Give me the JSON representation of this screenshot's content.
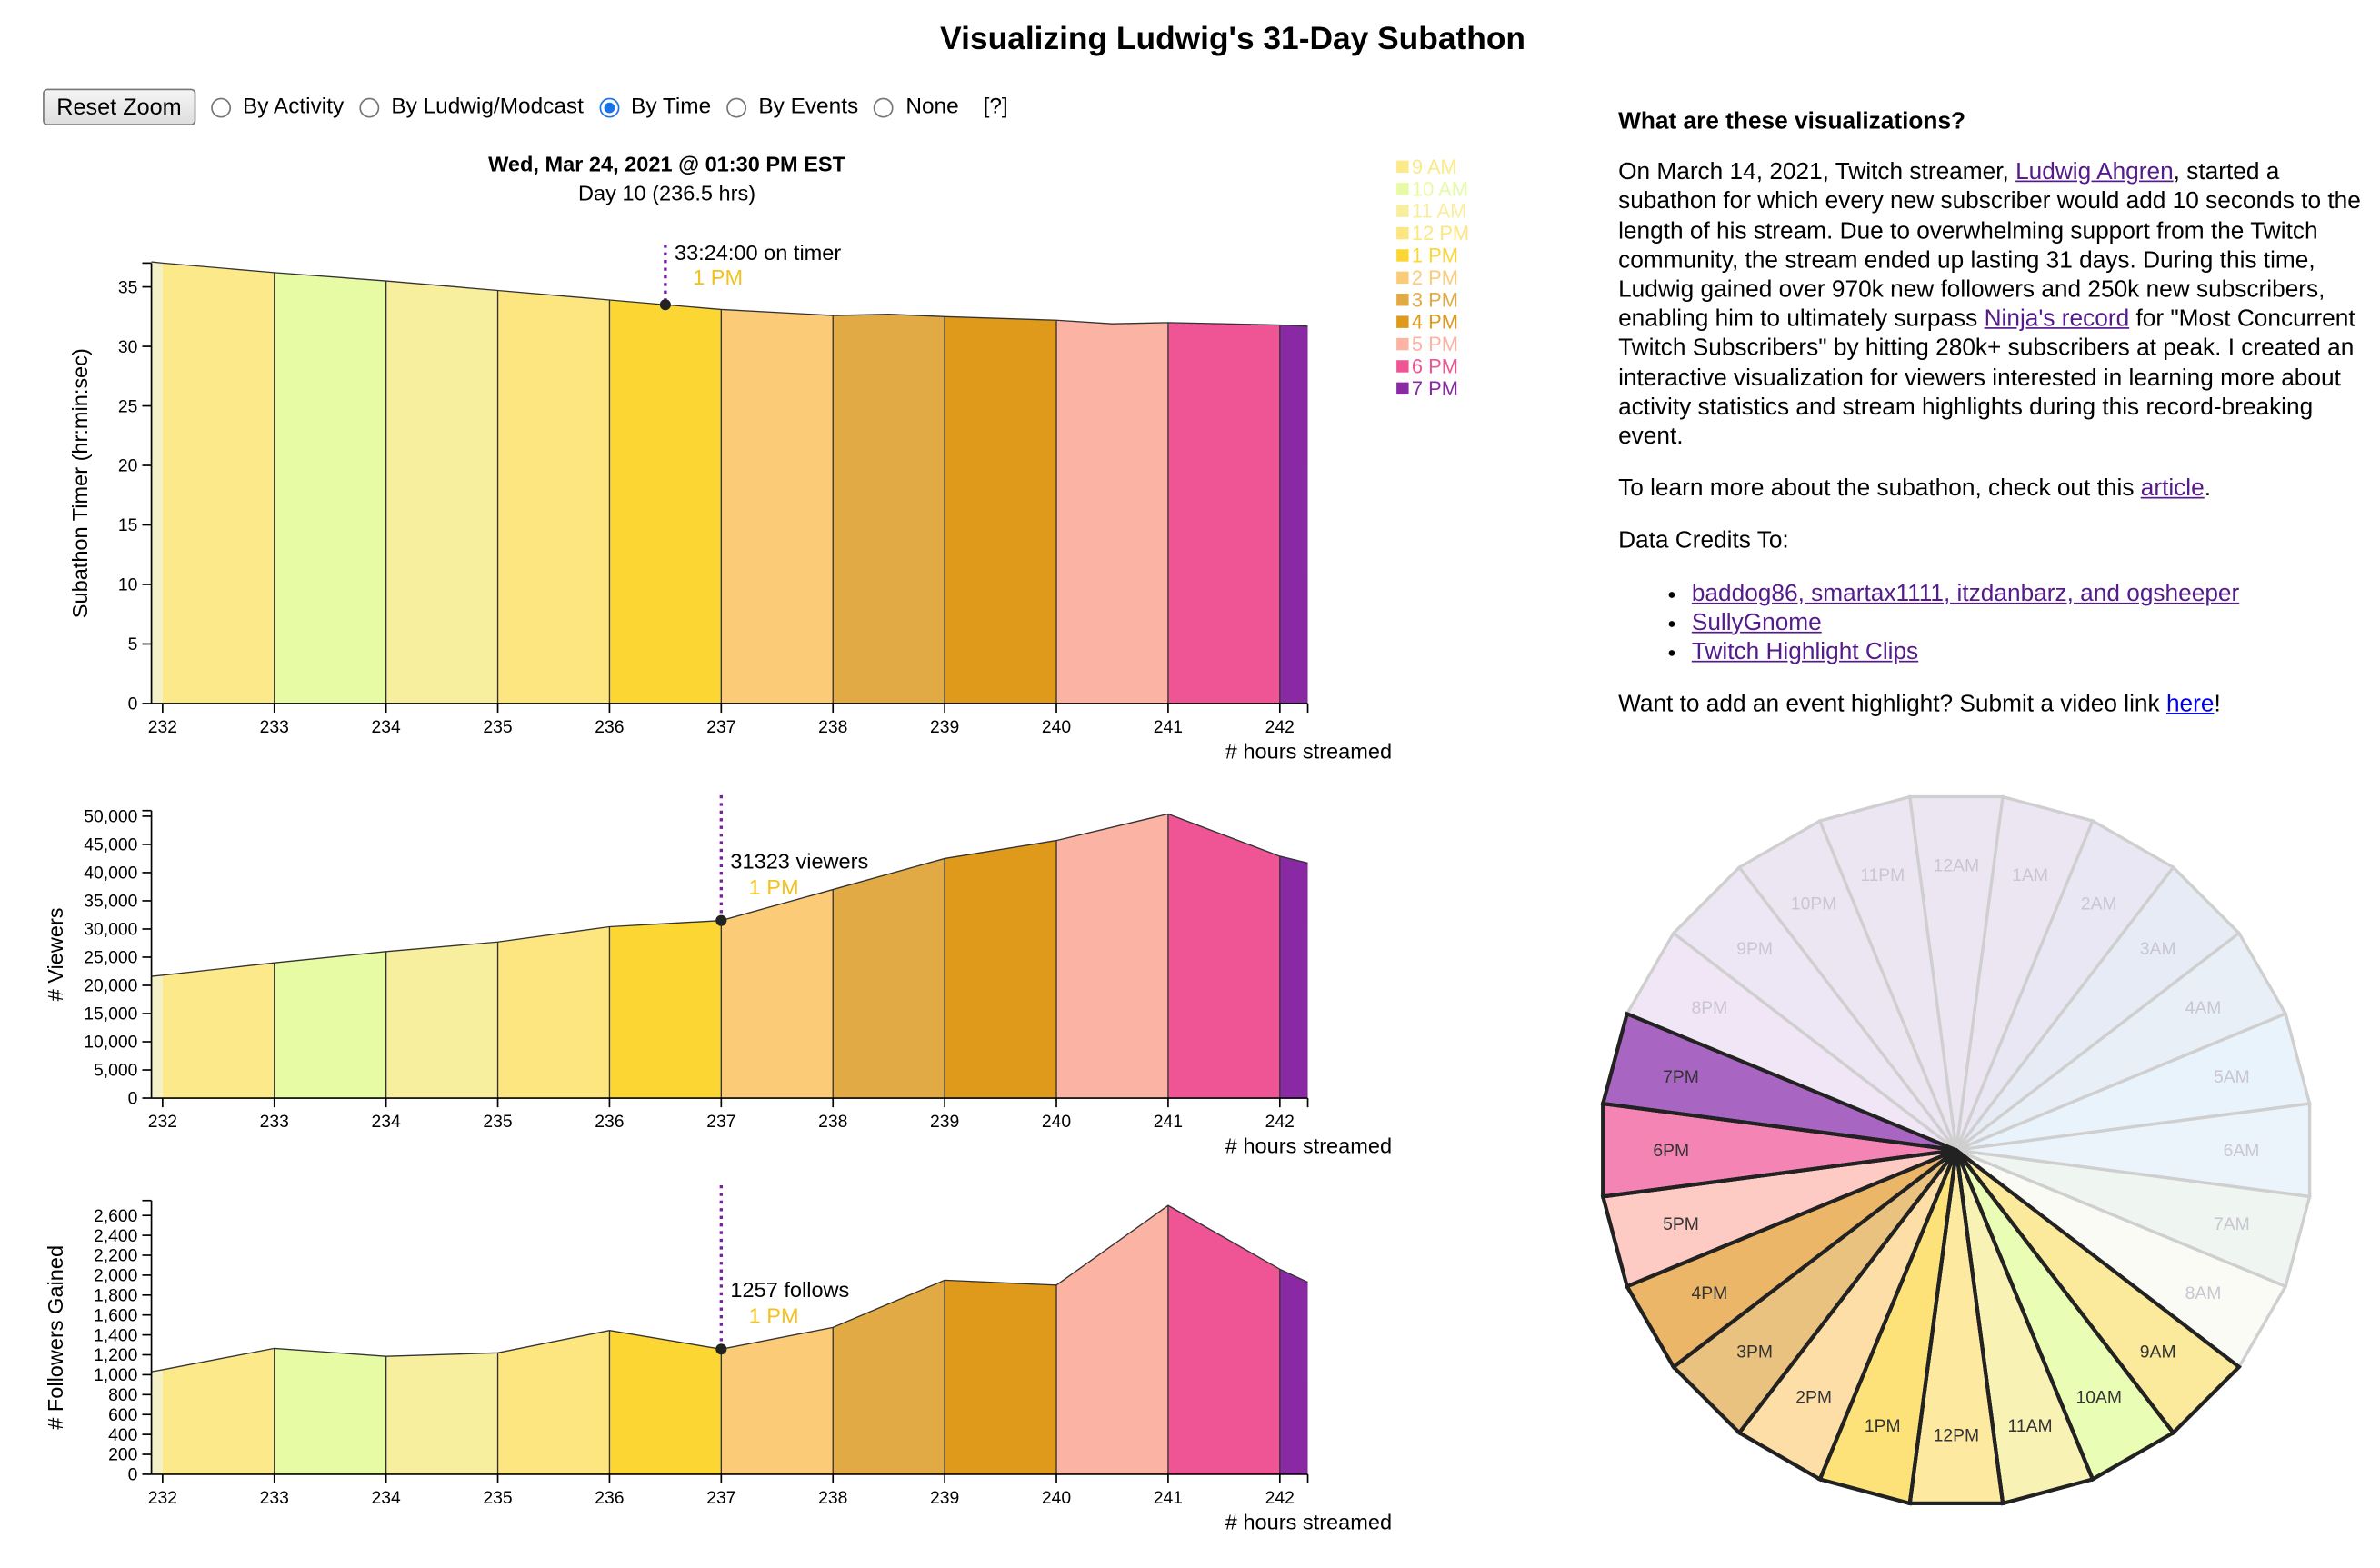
{
  "page_title": "Visualizing Ludwig's 31-Day Subathon",
  "controls": {
    "reset_label": "Reset Zoom",
    "options": [
      "By Activity",
      "By Ludwig/Modcast",
      "By Time",
      "By Events",
      "None"
    ],
    "selected": "By Time",
    "help_label": "[?]"
  },
  "header": {
    "date": "Wed, Mar 24, 2021 @ 01:30 PM EST",
    "day": "Day 10 (236.5 hrs)"
  },
  "legend": [
    {
      "label": "9 AM",
      "color": "#fbe98a"
    },
    {
      "label": "10 AM",
      "color": "#e6fba4"
    },
    {
      "label": "11 AM",
      "color": "#f7ef9d"
    },
    {
      "label": "12 PM",
      "color": "#fde57f"
    },
    {
      "label": "1 PM",
      "color": "#fcd734"
    },
    {
      "label": "2 PM",
      "color": "#fbcb78"
    },
    {
      "label": "3 PM",
      "color": "#e2aa44"
    },
    {
      "label": "4 PM",
      "color": "#df9a1c"
    },
    {
      "label": "5 PM",
      "color": "#fbb3a4"
    },
    {
      "label": "6 PM",
      "color": "#ef5595"
    },
    {
      "label": "7 PM",
      "color": "#8929a4"
    }
  ],
  "info": {
    "heading": "What are these visualizations?",
    "p1": [
      {
        "t": "On March 14, 2021, Twitch streamer, "
      },
      {
        "t": "Ludwig Ahgren",
        "link": true
      },
      {
        "t": ", started a subathon for which every new subscriber would add 10 seconds to the length of his stream. Due to overwhelming support from the Twitch community, the stream ended up lasting 31 days. During this time, Ludwig gained over 970k new followers and 250k new subscribers, enabling him to ultimately surpass "
      },
      {
        "t": "Ninja's record",
        "link": true
      },
      {
        "t": " for \"Most Concurrent Twitch Subscribers\" by hitting 280k+ subscribers at peak. I created an interactive visualization for viewers interested in learning more about activity statistics and stream highlights during this record-breaking event."
      }
    ],
    "p2": [
      {
        "t": "To learn more about the subathon, check out this "
      },
      {
        "t": "article",
        "link": true
      },
      {
        "t": "."
      }
    ],
    "credits_label": "Data Credits To:",
    "credits": [
      "baddog86, smartax1111, itzdanbarz, and ogsheeper",
      "SullyGnome",
      "Twitch Highlight Clips"
    ],
    "p3": [
      {
        "t": "Want to add an event highlight? Submit a video link "
      },
      {
        "t": "here",
        "link": true,
        "blue": true
      },
      {
        "t": "!"
      }
    ]
  },
  "chart_data": [
    {
      "type": "area",
      "ylabel": "Subathon Timer (hr:min:sec)",
      "xlabel": "# hours streamed",
      "xlim": [
        231.9,
        242.25
      ],
      "ylim": [
        0,
        37
      ],
      "yticks": [
        0,
        5,
        10,
        15,
        20,
        25,
        30,
        35
      ],
      "xticks": [
        232,
        233,
        234,
        235,
        236,
        237,
        238,
        239,
        240,
        241,
        242
      ],
      "x": [
        231.9,
        232,
        233,
        234,
        235,
        236,
        237,
        238,
        238.5,
        239,
        240,
        240.5,
        241,
        242,
        242.25
      ],
      "y": [
        37.1,
        37.0,
        36.2,
        35.5,
        34.7,
        33.9,
        33.1,
        32.6,
        32.7,
        32.5,
        32.2,
        31.9,
        32.0,
        31.8,
        31.7
      ],
      "marker": {
        "x": 236.5,
        "y": 33.4,
        "label": "33:24:00 on timer",
        "sub": "1 PM"
      }
    },
    {
      "type": "area",
      "ylabel": "# Viewers",
      "xlabel": "# hours streamed",
      "xlim": [
        231.9,
        242.25
      ],
      "ylim": [
        0,
        51000
      ],
      "yticks": [
        0,
        5000,
        10000,
        15000,
        20000,
        25000,
        30000,
        35000,
        40000,
        45000,
        50000
      ],
      "xticks": [
        232,
        233,
        234,
        235,
        236,
        237,
        238,
        239,
        240,
        241,
        242
      ],
      "x": [
        231.9,
        232,
        233,
        234,
        235,
        236,
        237,
        238,
        239,
        240,
        241,
        242,
        242.25
      ],
      "y": [
        21600,
        21800,
        24000,
        26000,
        27700,
        30400,
        31500,
        37000,
        42500,
        45700,
        50400,
        42900,
        41700
      ],
      "marker": {
        "x": 237,
        "y": 31323,
        "label": "31323 viewers",
        "sub": "1 PM"
      }
    },
    {
      "type": "area",
      "ylabel": "# Followers Gained",
      "xlabel": "# hours streamed",
      "xlim": [
        231.9,
        242.25
      ],
      "ylim": [
        0,
        2750
      ],
      "yticks": [
        0,
        200,
        400,
        600,
        800,
        1000,
        1200,
        1400,
        1600,
        1800,
        2000,
        2200,
        2400,
        2600
      ],
      "xticks": [
        232,
        233,
        234,
        235,
        236,
        237,
        238,
        239,
        240,
        241,
        242
      ],
      "x": [
        231.9,
        232,
        233,
        234,
        235,
        236,
        237,
        238,
        239,
        240,
        241,
        242,
        242.25
      ],
      "y": [
        1030,
        1050,
        1265,
        1185,
        1220,
        1445,
        1257,
        1475,
        1950,
        1900,
        2700,
        2060,
        1930
      ],
      "marker": {
        "x": 237,
        "y": 1257,
        "label": "1257 follows",
        "sub": "1 PM"
      }
    },
    {
      "type": "pie",
      "slices": [
        {
          "label": "12AM",
          "color": "#ece6f3",
          "active": false
        },
        {
          "label": "1AM",
          "color": "#ece6f3",
          "active": false
        },
        {
          "label": "2AM",
          "color": "#e9e7f4",
          "active": false
        },
        {
          "label": "3AM",
          "color": "#e7ebf5",
          "active": false
        },
        {
          "label": "4AM",
          "color": "#e8eff7",
          "active": false
        },
        {
          "label": "5AM",
          "color": "#e9f3fb",
          "active": false
        },
        {
          "label": "6AM",
          "color": "#ebf4fb",
          "active": false
        },
        {
          "label": "7AM",
          "color": "#eff5f1",
          "active": false
        },
        {
          "label": "8AM",
          "color": "#fbfbf6",
          "active": false
        },
        {
          "label": "9AM",
          "color": "#fbea9b",
          "active": true
        },
        {
          "label": "10AM",
          "color": "#eafdb4",
          "active": true
        },
        {
          "label": "11AM",
          "color": "#f8f2b4",
          "active": true
        },
        {
          "label": "12PM",
          "color": "#fdeaa0",
          "active": true
        },
        {
          "label": "1PM",
          "color": "#fde27a",
          "active": true
        },
        {
          "label": "2PM",
          "color": "#fddea6",
          "active": true
        },
        {
          "label": "3PM",
          "color": "#e9c27f",
          "active": true
        },
        {
          "label": "4PM",
          "color": "#ebb667",
          "active": true
        },
        {
          "label": "5PM",
          "color": "#fdcbc4",
          "active": true
        },
        {
          "label": "6PM",
          "color": "#f484b4",
          "active": true
        },
        {
          "label": "7PM",
          "color": "#a866c2",
          "active": true
        },
        {
          "label": "8PM",
          "color": "#f0e6f6",
          "active": false
        },
        {
          "label": "9PM",
          "color": "#ede6f4",
          "active": false
        },
        {
          "label": "10PM",
          "color": "#ece6f3",
          "active": false
        },
        {
          "label": "11PM",
          "color": "#ece6f3",
          "active": false
        }
      ]
    }
  ]
}
